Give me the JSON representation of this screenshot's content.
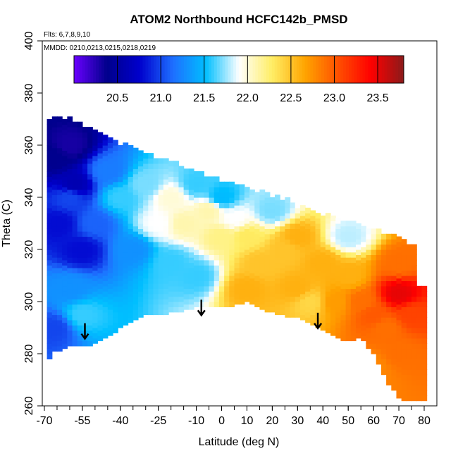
{
  "chart_data": {
    "type": "heatmap",
    "title": "ATOM2 Northbound HCFC142b_PMSD",
    "annotations": [
      "Flts: 6,7,8,9,10",
      "MMDD: 0210,0213,0215,0218,0219"
    ],
    "xlabel": "Latitude (deg N)",
    "ylabel": "Theta (C)",
    "xlim": [
      -70,
      80
    ],
    "ylim": [
      260,
      400
    ],
    "x_ticks": [
      -70,
      -55,
      -40,
      -25,
      -10,
      0,
      10,
      20,
      30,
      40,
      50,
      60,
      70,
      80
    ],
    "y_ticks": [
      260,
      280,
      300,
      320,
      340,
      360,
      380,
      400
    ],
    "colorbar": {
      "min": 20.0,
      "max": 23.8,
      "ticks": [
        20.5,
        21.0,
        21.5,
        22.0,
        22.5,
        23.0,
        23.5
      ],
      "palette": [
        "#6a00ff",
        "#00008b",
        "#0000cd",
        "#1e6fff",
        "#00bfff",
        "#ffffff",
        "#ffee66",
        "#ffa500",
        "#ff5000",
        "#ff0000",
        "#8b1a1a"
      ]
    },
    "arrows": [
      {
        "lat": -54,
        "theta": 289
      },
      {
        "lat": -8,
        "theta": 298
      },
      {
        "lat": 38,
        "theta": 293
      }
    ],
    "field": {
      "top_boundary": [
        [
          -69,
          370
        ],
        [
          -60,
          370
        ],
        [
          -50,
          365
        ],
        [
          -40,
          360
        ],
        [
          -30,
          356
        ],
        [
          -20,
          353
        ],
        [
          -10,
          349
        ],
        [
          0,
          346
        ],
        [
          10,
          343
        ],
        [
          20,
          340
        ],
        [
          30,
          337
        ],
        [
          40,
          333
        ],
        [
          50,
          330
        ],
        [
          60,
          327
        ],
        [
          70,
          324
        ],
        [
          74,
          322
        ]
      ],
      "bottom_boundary": [
        [
          -69,
          277
        ],
        [
          -66,
          281
        ],
        [
          -60,
          283
        ],
        [
          -50,
          284
        ],
        [
          -40,
          290
        ],
        [
          -30,
          295
        ],
        [
          -20,
          296
        ],
        [
          -10,
          298
        ],
        [
          0,
          298
        ],
        [
          10,
          300
        ],
        [
          20,
          296
        ],
        [
          30,
          294
        ],
        [
          40,
          289
        ],
        [
          50,
          285
        ],
        [
          55,
          287
        ],
        [
          60,
          280
        ],
        [
          65,
          270
        ],
        [
          71,
          262
        ],
        [
          80,
          262
        ],
        [
          80,
          290
        ],
        [
          77,
          305
        ]
      ],
      "anchors": [
        [
          -66,
          355,
          20.4
        ],
        [
          -60,
          360,
          20.3
        ],
        [
          -58,
          345,
          20.6
        ],
        [
          -64,
          330,
          20.8
        ],
        [
          -55,
          320,
          20.8
        ],
        [
          -60,
          305,
          21.3
        ],
        [
          -55,
          295,
          21.6
        ],
        [
          -50,
          330,
          21.1
        ],
        [
          -45,
          350,
          21.2
        ],
        [
          -40,
          340,
          21.6
        ],
        [
          -35,
          320,
          21.3
        ],
        [
          -30,
          345,
          21.7
        ],
        [
          -25,
          330,
          21.9
        ],
        [
          -20,
          340,
          22.0
        ],
        [
          -20,
          315,
          21.6
        ],
        [
          -15,
          330,
          22.1
        ],
        [
          -10,
          310,
          21.6
        ],
        [
          -5,
          335,
          22.1
        ],
        [
          0,
          325,
          22.2
        ],
        [
          0,
          340,
          21.5
        ],
        [
          -10,
          345,
          21.6
        ],
        [
          5,
          332,
          21.9
        ],
        [
          10,
          325,
          22.3
        ],
        [
          15,
          315,
          22.5
        ],
        [
          10,
          305,
          22.6
        ],
        [
          20,
          335,
          21.7
        ],
        [
          25,
          320,
          22.5
        ],
        [
          30,
          305,
          22.6
        ],
        [
          30,
          325,
          22.6
        ],
        [
          35,
          300,
          22.4
        ],
        [
          40,
          315,
          22.6
        ],
        [
          45,
          300,
          22.7
        ],
        [
          50,
          310,
          22.6
        ],
        [
          50,
          325,
          21.8
        ],
        [
          55,
          300,
          22.9
        ],
        [
          60,
          295,
          23.0
        ],
        [
          65,
          290,
          22.9
        ],
        [
          70,
          303,
          23.5
        ],
        [
          70,
          315,
          22.9
        ],
        [
          70,
          280,
          22.9
        ],
        [
          75,
          295,
          23.1
        ],
        [
          60,
          275,
          22.8
        ],
        [
          -66,
          290,
          21.0
        ],
        [
          -60,
          340,
          21.0
        ]
      ]
    }
  }
}
